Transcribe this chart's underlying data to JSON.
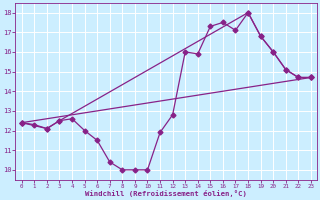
{
  "background_color": "#cceeff",
  "grid_color": "#ffffff",
  "line_color": "#882288",
  "xlim": [
    -0.5,
    23.5
  ],
  "ylim": [
    9.5,
    18.5
  ],
  "xlabel": "Windchill (Refroidissement éolien,°C)",
  "yticks": [
    10,
    11,
    12,
    13,
    14,
    15,
    16,
    17,
    18
  ],
  "xticks": [
    0,
    1,
    2,
    3,
    4,
    5,
    6,
    7,
    8,
    9,
    10,
    11,
    12,
    13,
    14,
    15,
    16,
    17,
    18,
    19,
    20,
    21,
    22,
    23
  ],
  "line1_x": [
    0,
    1,
    2,
    3,
    4,
    5,
    6,
    7,
    8,
    9,
    10,
    11,
    12,
    13,
    14,
    15,
    16,
    17,
    18,
    19,
    20,
    21,
    22,
    23
  ],
  "line1_y": [
    12.4,
    12.3,
    12.1,
    12.5,
    12.6,
    12.0,
    11.5,
    10.4,
    10.0,
    10.0,
    10.0,
    11.9,
    12.8,
    16.0,
    15.9,
    17.3,
    17.5,
    17.1,
    18.0,
    16.8,
    16.0,
    15.1,
    14.7,
    14.7
  ],
  "line2_x": [
    0,
    2,
    3,
    18,
    19,
    20,
    21,
    22,
    23
  ],
  "line2_y": [
    12.4,
    12.1,
    12.5,
    18.0,
    16.8,
    16.0,
    15.1,
    14.7,
    14.7
  ],
  "line3_x": [
    0,
    23
  ],
  "line3_y": [
    12.4,
    14.7
  ],
  "markersize": 2.5,
  "linewidth": 0.9
}
